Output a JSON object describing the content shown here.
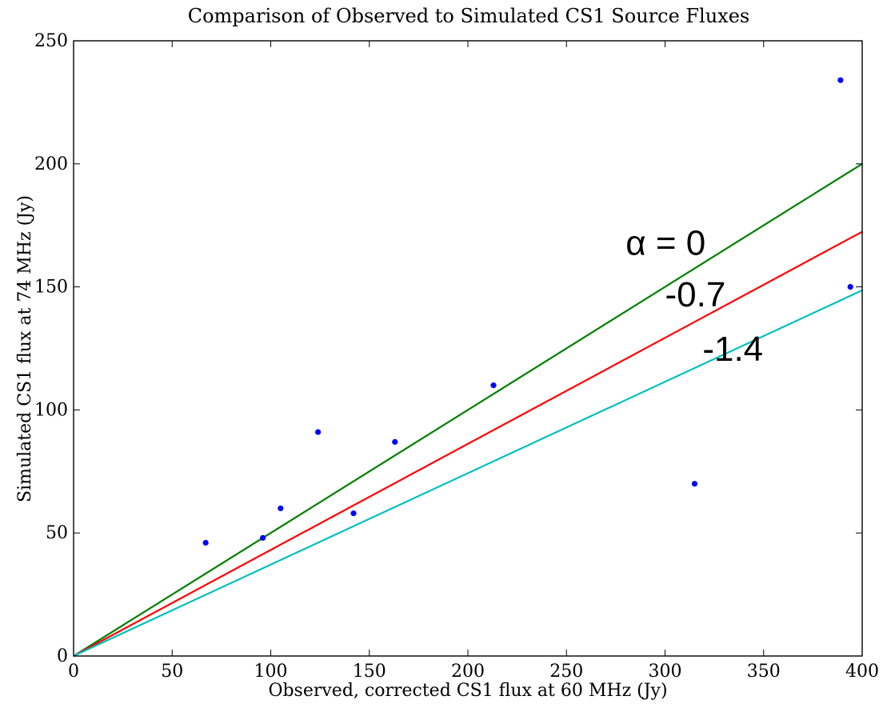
{
  "chart_data": {
    "type": "scatter",
    "title": "Comparison of Observed to Simulated CS1 Source Fluxes",
    "xlabel": "Observed, corrected CS1 flux at 60 MHz (Jy)",
    "ylabel": "Simulated CS1 flux at 74 MHz (Jy)",
    "xlim": [
      0,
      400
    ],
    "ylim": [
      0,
      250
    ],
    "xticks": [
      0,
      50,
      100,
      150,
      200,
      250,
      300,
      350,
      400
    ],
    "yticks": [
      0,
      50,
      100,
      150,
      200,
      250
    ],
    "grid": false,
    "points": {
      "color": "#0000ff",
      "x": [
        67,
        96,
        105,
        124,
        142,
        163,
        213,
        315,
        389,
        394
      ],
      "y": [
        46,
        48,
        60,
        91,
        58,
        87,
        110,
        70,
        234,
        150
      ]
    },
    "series": [
      {
        "type": "line",
        "alpha": 0,
        "color": "#008000",
        "x": [
          0,
          400
        ],
        "y": [
          0,
          200
        ]
      },
      {
        "type": "line",
        "alpha": -0.7,
        "color": "#ff0000",
        "x": [
          0,
          400
        ],
        "y": [
          0,
          172.4
        ]
      },
      {
        "type": "line",
        "alpha": -1.4,
        "color": "#00bfbf",
        "x": [
          0,
          400
        ],
        "y": [
          0,
          148.6
        ]
      }
    ],
    "annotations": [
      {
        "text": "α = 0",
        "x": 280,
        "y": 163
      },
      {
        "text": "-0.7",
        "x": 300,
        "y": 142
      },
      {
        "text": "-1.4",
        "x": 319,
        "y": 120
      }
    ]
  }
}
